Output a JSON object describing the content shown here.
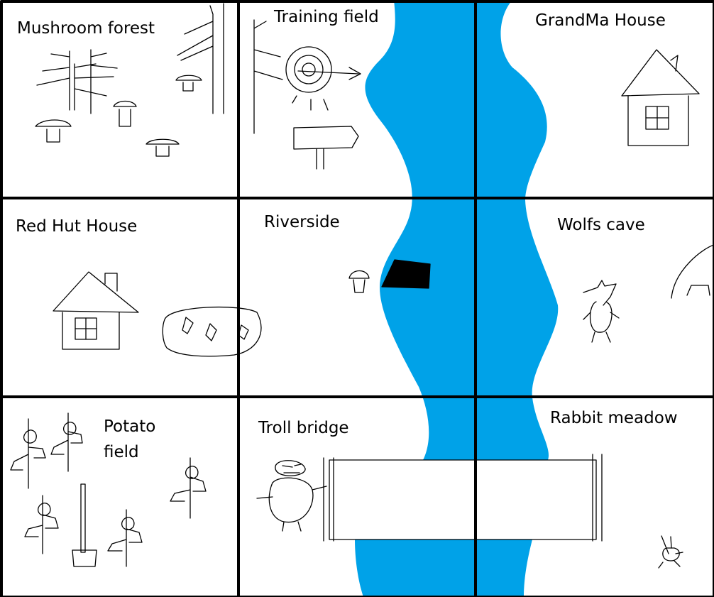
{
  "map": {
    "colors": {
      "river": "#00a2e8",
      "grid": "#000000",
      "background": "#ffffff",
      "ink": "#000000"
    },
    "regions": {
      "mushroom_forest": "Mushroom forest",
      "training_field": "Training field",
      "grandma_house": "GrandMa House",
      "red_hut_house": "Red Hut House",
      "riverside": "Riverside",
      "wolfs_cave": "Wolfs cave",
      "potato_field": "Potato\nfield",
      "troll_bridge": "Troll bridge",
      "rabbit_meadow": "Rabbit meadow"
    },
    "icons": [
      "pine-tree-icon",
      "mushroom-icon",
      "archery-target-icon",
      "signpost-icon",
      "house-icon",
      "bush-patch-icon",
      "dark-hole-icon",
      "wolf-icon",
      "cave-icon",
      "potato-plant-icon",
      "shovel-icon",
      "troll-icon",
      "bridge-icon",
      "rabbit-icon"
    ]
  }
}
